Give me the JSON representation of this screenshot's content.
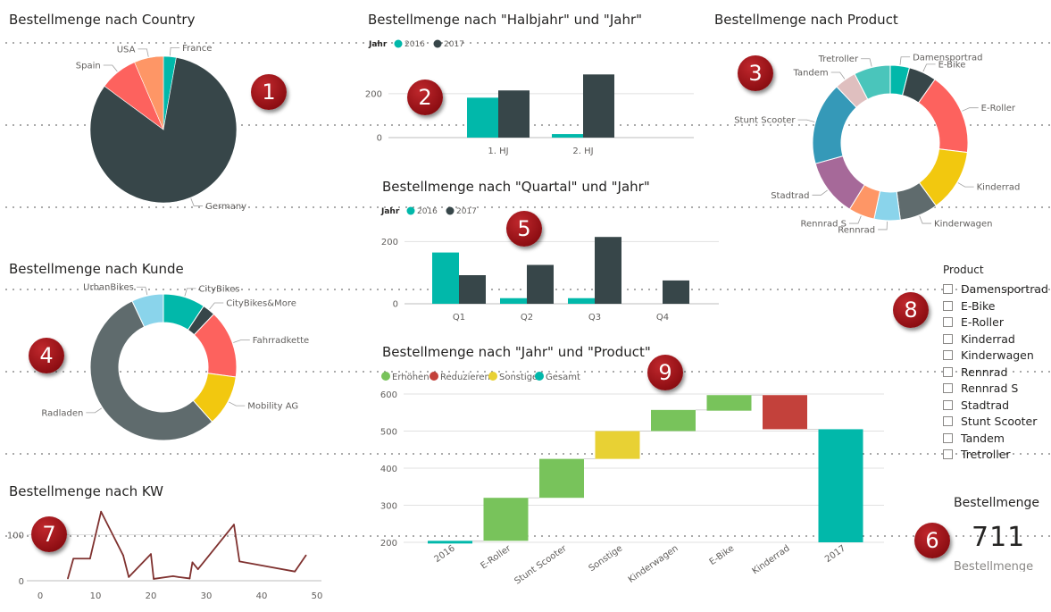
{
  "colors": {
    "teal": "#01B8AA",
    "dark": "#374649",
    "red": "#FD625E",
    "orange": "#FE9666",
    "green": "#78C35B",
    "darkred": "#C3413B",
    "yellow": "#E8D134",
    "line": "#7F312F",
    "grid": "#e1e1e1",
    "axis": "#605e5c",
    "badge": "#a0161b"
  },
  "badges": [
    "1",
    "2",
    "3",
    "4",
    "5",
    "6",
    "7",
    "8",
    "9"
  ],
  "chart_data": [
    {
      "id": "country",
      "type": "pie",
      "title": "Bestellmenge nach Country",
      "slices": [
        {
          "label": "France",
          "value": 20,
          "color": "#01B8AA"
        },
        {
          "label": "Germany",
          "value": 585,
          "color": "#374649"
        },
        {
          "label": "Spain",
          "value": 60,
          "color": "#FD625E"
        },
        {
          "label": "USA",
          "value": 46,
          "color": "#FE9666"
        }
      ]
    },
    {
      "id": "halbjahr",
      "type": "bar",
      "title": "Bestellmenge nach \"Halbjahr\" und \"Jahr\"",
      "legend_title": "Jahr",
      "categories": [
        "1. HJ",
        "2. HJ"
      ],
      "series": [
        {
          "name": "2016",
          "values": [
            182,
            16
          ],
          "color": "#01B8AA"
        },
        {
          "name": "2017",
          "values": [
            215,
            288
          ],
          "color": "#374649"
        }
      ],
      "ylim": [
        0,
        330
      ],
      "yticks": [
        0,
        200
      ]
    },
    {
      "id": "product",
      "type": "pie",
      "donut": true,
      "title": "Bestellmenge nach Product",
      "slices": [
        {
          "label": "Damensportrad",
          "value": 22,
          "color": "#01B8AA"
        },
        {
          "label": "E-Bike",
          "value": 32,
          "color": "#374649"
        },
        {
          "label": "E-Roller",
          "value": 95,
          "color": "#FD625E"
        },
        {
          "label": "Kinderrad",
          "value": 72,
          "color": "#F2C80F"
        },
        {
          "label": "Kinderwagen",
          "value": 44,
          "color": "#5F6B6D"
        },
        {
          "label": "Rennrad",
          "value": 30,
          "color": "#8AD4EB"
        },
        {
          "label": "Rennrad S",
          "value": 30,
          "color": "#FE9666"
        },
        {
          "label": "Stadtrad",
          "value": 66,
          "color": "#A66999"
        },
        {
          "label": "Stunt Scooter",
          "value": 95,
          "color": "#3599B8"
        },
        {
          "label": "Tandem",
          "value": 25,
          "color": "#DFBFBF"
        },
        {
          "label": "Tretroller",
          "value": 42,
          "color": "#4AC5BB"
        }
      ]
    },
    {
      "id": "kunde",
      "type": "pie",
      "donut": true,
      "title": "Bestellmenge nach Kunde",
      "slices": [
        {
          "label": "CityBikes",
          "value": 66,
          "color": "#01B8AA"
        },
        {
          "label": "CityBikes&More",
          "value": 20,
          "color": "#374649"
        },
        {
          "label": "Fahrradkette",
          "value": 107,
          "color": "#FD625E"
        },
        {
          "label": "Mobility AG",
          "value": 80,
          "color": "#F2C80F"
        },
        {
          "label": "Radladen",
          "value": 388,
          "color": "#5F6B6D"
        },
        {
          "label": "UrbanBikes",
          "value": 50,
          "color": "#8AD4EB"
        }
      ]
    },
    {
      "id": "quartal",
      "type": "bar",
      "title": "Bestellmenge nach \"Quartal\" und \"Jahr\"",
      "legend_title": "Jahr",
      "categories": [
        "Q1",
        "Q2",
        "Q3",
        "Q4"
      ],
      "series": [
        {
          "name": "2016",
          "values": [
            165,
            18,
            18,
            0
          ],
          "color": "#01B8AA"
        },
        {
          "name": "2017",
          "values": [
            92,
            125,
            215,
            75
          ],
          "color": "#374649"
        }
      ],
      "ylim": [
        0,
        230
      ],
      "yticks": [
        0,
        200
      ]
    },
    {
      "id": "kw",
      "type": "line",
      "title": "Bestellmenge nach KW",
      "x": [
        5,
        6,
        9,
        11,
        15,
        16,
        20,
        20.5,
        24,
        25,
        27,
        27.5,
        28.5,
        35,
        36,
        46,
        48
      ],
      "y": [
        5,
        48,
        48,
        150,
        55,
        8,
        58,
        4,
        10,
        8,
        5,
        40,
        25,
        122,
        42,
        20,
        55
      ],
      "xticks": [
        0,
        10,
        20,
        30,
        40,
        50
      ],
      "yticks": [
        0,
        100
      ],
      "xlim": [
        -1,
        52
      ],
      "ylim": [
        0,
        165
      ],
      "color": "#7F312F"
    },
    {
      "id": "waterfall",
      "type": "waterfall",
      "title": "Bestellmenge nach \"Jahr\" und \"Product\"",
      "legend": [
        {
          "name": "Erhöhen",
          "color": "#78C35B"
        },
        {
          "name": "Reduzieren",
          "color": "#C3413B"
        },
        {
          "name": "Sonstige",
          "color": "#E8D134"
        },
        {
          "name": "Gesamt",
          "color": "#01B8AA"
        }
      ],
      "steps": [
        {
          "label": "2016",
          "start": 200,
          "end": 204,
          "kind": "Gesamt"
        },
        {
          "label": "E-Roller",
          "start": 204,
          "end": 320,
          "kind": "Erhöhen"
        },
        {
          "label": "Stunt Scooter",
          "start": 320,
          "end": 425,
          "kind": "Erhöhen"
        },
        {
          "label": "Sonstige",
          "start": 425,
          "end": 500,
          "kind": "Sonstige"
        },
        {
          "label": "Kinderwagen",
          "start": 500,
          "end": 557,
          "kind": "Erhöhen"
        },
        {
          "label": "E-Bike",
          "start": 555,
          "end": 597,
          "kind": "Erhöhen"
        },
        {
          "label": "Kinderrad",
          "start": 597,
          "end": 505,
          "kind": "Reduzieren"
        },
        {
          "label": "2017",
          "start": 200,
          "end": 505,
          "kind": "Gesamt"
        }
      ],
      "ylim": [
        195,
        610
      ],
      "yticks": [
        200,
        300,
        400,
        500,
        600
      ]
    }
  ],
  "slicer": {
    "title": "Product",
    "items": [
      "Damensportrad",
      "E-Bike",
      "E-Roller",
      "Kinderrad",
      "Kinderwagen",
      "Rennrad",
      "Rennrad S",
      "Stadtrad",
      "Stunt Scooter",
      "Tandem",
      "Tretroller"
    ]
  },
  "card": {
    "title": "Bestellmenge",
    "value": "711",
    "label": "Bestellmenge"
  }
}
